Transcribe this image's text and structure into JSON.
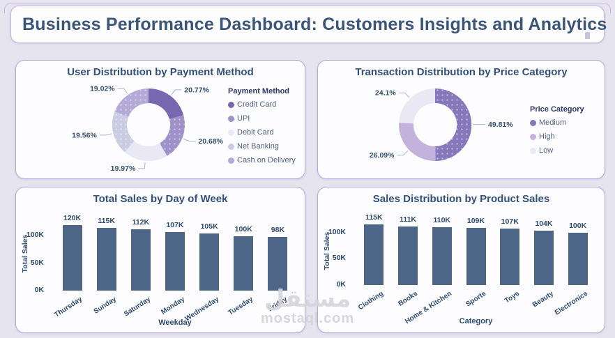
{
  "header": {
    "title": "Business Performance Dashboard: Customers Insights and Analytics"
  },
  "watermark": {
    "arabic": "مستقل",
    "latin": "mostaql.com"
  },
  "theme": {
    "background": "#e6e5ef",
    "panel_border": "#b7a8dd",
    "title_text": "#3b5578",
    "bar_color": "#4d6586"
  },
  "chart_data": [
    {
      "type": "pie",
      "title": "User Distribution by Payment Method",
      "legend_title": "Payment Method",
      "legend_position": "right",
      "slices": [
        {
          "label": "Credit Card",
          "value": 20.77,
          "label_text": "20.77%",
          "color": "#7768b1",
          "dotted": false
        },
        {
          "label": "UPI",
          "value": 20.68,
          "label_text": "20.68%",
          "color": "#9e92c9",
          "dotted": true
        },
        {
          "label": "Debit Card",
          "value": 19.97,
          "label_text": "19.97%",
          "color": "#eae8f4",
          "dotted": false
        },
        {
          "label": "Net Banking",
          "value": 19.56,
          "label_text": "19.56%",
          "color": "#c9cce2",
          "dotted": true
        },
        {
          "label": "Cash on Delivery",
          "value": 19.02,
          "label_text": "19.02%",
          "color": "#b3aad8",
          "dotted": true
        }
      ]
    },
    {
      "type": "pie",
      "title": "Transaction Distribution by Price Category",
      "legend_title": "Price Category",
      "legend_position": "right",
      "slices": [
        {
          "label": "Medium",
          "value": 49.81,
          "label_text": "49.81%",
          "color": "#8579bb",
          "dotted": true
        },
        {
          "label": "High",
          "value": 26.09,
          "label_text": "26.09%",
          "color": "#c3b3dc",
          "dotted": false
        },
        {
          "label": "Low",
          "value": 24.1,
          "label_text": "24.1%",
          "color": "#eae8f4",
          "dotted": false
        }
      ]
    },
    {
      "type": "bar",
      "title": "Total Sales by Day of Week",
      "categories": [
        "Thursday",
        "Sunday",
        "Saturday",
        "Monday",
        "Wednesday",
        "Tuesday",
        "Friday"
      ],
      "values": [
        120000,
        115000,
        112000,
        107000,
        105000,
        100000,
        98000
      ],
      "value_labels": [
        "120K",
        "115K",
        "112K",
        "107K",
        "105K",
        "100K",
        "98K"
      ],
      "xlabel": "Weekday",
      "ylabel": "Total Sales",
      "ylim": [
        0,
        135000
      ],
      "yticks": [
        {
          "v": 100000,
          "label": "100K"
        },
        {
          "v": 50000,
          "label": "50K"
        },
        {
          "v": 0,
          "label": "0K"
        }
      ],
      "color": "#4d6586",
      "grid": false
    },
    {
      "type": "bar",
      "title": "Sales Distribution by Product Sales",
      "categories": [
        "Clothing",
        "Books",
        "Home & Kitchen",
        "Sports",
        "Toys",
        "Beauty",
        "Electronics"
      ],
      "values": [
        115000,
        111000,
        110000,
        109000,
        107000,
        104000,
        100000
      ],
      "value_labels": [
        "115K",
        "111K",
        "110K",
        "109K",
        "107K",
        "104K",
        "100K"
      ],
      "xlabel": "Category",
      "ylabel": "Total Sales",
      "ylim": [
        0,
        130000
      ],
      "yticks": [
        {
          "v": 100000,
          "label": "100K"
        },
        {
          "v": 50000,
          "label": "50K"
        },
        {
          "v": 0,
          "label": "0K"
        }
      ],
      "color": "#4d6586",
      "grid": false
    }
  ]
}
